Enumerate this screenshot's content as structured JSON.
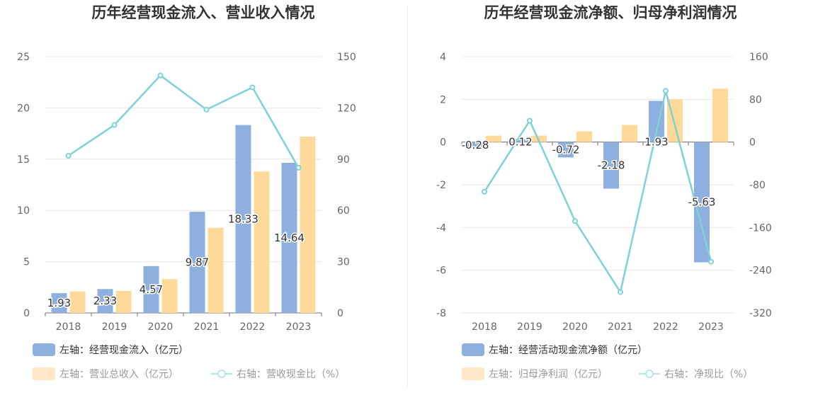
{
  "chart_data": [
    {
      "type": "bar",
      "title": "历年经营现金流入、营业收入情况",
      "categories": [
        "2018",
        "2019",
        "2020",
        "2021",
        "2022",
        "2023"
      ],
      "y_left": {
        "ticks": [
          "0",
          "5",
          "10",
          "15",
          "20",
          "25"
        ],
        "ylim": [
          0,
          25
        ]
      },
      "y_right": {
        "ticks": [
          "0",
          "30",
          "60",
          "90",
          "120",
          "150"
        ],
        "ylim": [
          0,
          150
        ]
      },
      "series": [
        {
          "name": "左轴：经营现金流入（亿元）",
          "type": "bar",
          "axis": "left",
          "color": "#8eb0de",
          "values": [
            1.93,
            2.33,
            4.57,
            9.87,
            18.33,
            14.64
          ],
          "labels": [
            "1.93",
            "2.33",
            "4.57",
            "9.87",
            "18.33",
            "14.64"
          ]
        },
        {
          "name": "左轴：营业总收入（亿元）",
          "type": "bar",
          "axis": "left",
          "color": "#fed999",
          "values": [
            2.1,
            2.15,
            3.3,
            8.3,
            13.8,
            17.2
          ]
        },
        {
          "name": "右轴：营收现金比（%）",
          "type": "line",
          "axis": "right",
          "color": "#7ed1d4",
          "values": [
            92,
            110,
            139,
            119,
            132,
            85
          ]
        }
      ]
    },
    {
      "type": "bar",
      "title": "历年经营现金流净额、归母净利润情况",
      "categories": [
        "2018",
        "2019",
        "2020",
        "2021",
        "2022",
        "2023"
      ],
      "y_left": {
        "ticks": [
          "-8",
          "-6",
          "-4",
          "-2",
          "0",
          "2",
          "4"
        ],
        "ylim": [
          -8,
          4
        ]
      },
      "y_right": {
        "ticks": [
          "-320",
          "-240",
          "-160",
          "-80",
          "0",
          "80",
          "160"
        ],
        "ylim": [
          -320,
          160
        ]
      },
      "series": [
        {
          "name": "左轴：经营活动现金流净额（亿元）",
          "type": "bar",
          "axis": "left",
          "color": "#8eb0de",
          "values": [
            -0.28,
            0.12,
            -0.72,
            -2.18,
            1.93,
            -5.63
          ],
          "labels": [
            "-0.28",
            "0.12",
            "-0.72",
            "-2.18",
            "1.93",
            "-5.63"
          ]
        },
        {
          "name": "左轴：归母净利润（亿元）",
          "type": "bar",
          "axis": "left",
          "color": "#fed999",
          "values": [
            0.3,
            0.3,
            0.5,
            0.8,
            2.0,
            2.5
          ]
        },
        {
          "name": "右轴：净现比（%）",
          "type": "line",
          "axis": "right",
          "color": "#7ed1d4",
          "values": [
            -93,
            40,
            -148,
            -281,
            96,
            -224
          ]
        }
      ]
    }
  ]
}
